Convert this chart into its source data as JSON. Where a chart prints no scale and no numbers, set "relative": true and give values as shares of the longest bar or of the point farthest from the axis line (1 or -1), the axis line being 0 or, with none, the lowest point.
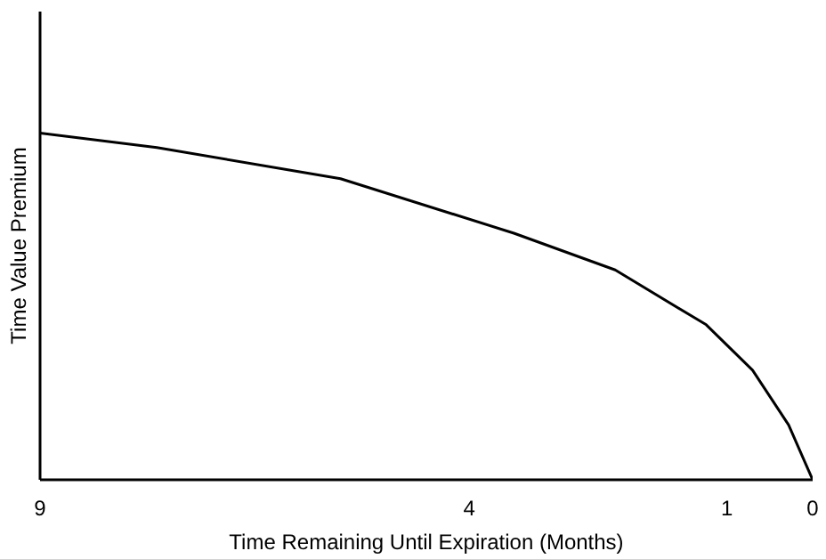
{
  "chart_data": {
    "type": "line",
    "relative": true,
    "xlabel": "Time Remaining Until Expiration (Months)",
    "ylabel": "Time Value Premium",
    "x": [
      9,
      7.64,
      5.5,
      3.48,
      2.3,
      1.24,
      0.7,
      0.28,
      0
    ],
    "series": [
      {
        "color": "#000000",
        "values": [
          1,
          0.958,
          0.868,
          0.711,
          0.605,
          0.447,
          0.316,
          0.158,
          0
        ]
      }
    ],
    "xlim": [
      9,
      0
    ],
    "xticks": [
      9,
      4,
      1,
      0
    ],
    "grid": false,
    "marker": "none",
    "line_style": "solid"
  }
}
